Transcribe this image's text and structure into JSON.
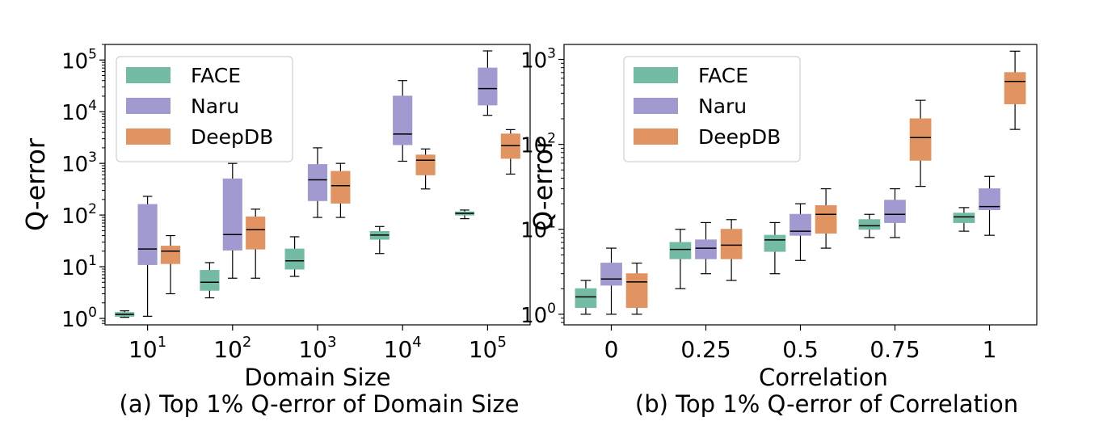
{
  "colors": {
    "FACE": "#74bba6",
    "Naru": "#a09ad0",
    "DeepDB": "#e19462"
  },
  "chart_data": [
    {
      "type": "box",
      "xlabel": "Domain Size",
      "ylabel": "Q-error",
      "caption": "(a) Top 1% Q-error of Domain Size",
      "yscale": "log",
      "ylim": [
        0.75,
        200000
      ],
      "y_ticks": [
        {
          "value": 1,
          "base": "10",
          "exp": "0"
        },
        {
          "value": 10,
          "base": "10",
          "exp": "1"
        },
        {
          "value": 100,
          "base": "10",
          "exp": "2"
        },
        {
          "value": 1000,
          "base": "10",
          "exp": "3"
        },
        {
          "value": 10000,
          "base": "10",
          "exp": "4"
        },
        {
          "value": 100000,
          "base": "10",
          "exp": "5"
        }
      ],
      "categories": [
        {
          "base": "10",
          "exp": "1"
        },
        {
          "base": "10",
          "exp": "2"
        },
        {
          "base": "10",
          "exp": "3"
        },
        {
          "base": "10",
          "exp": "4"
        },
        {
          "base": "10",
          "exp": "5"
        }
      ],
      "legend": {
        "position": "upper-left",
        "entries": [
          "FACE",
          "Naru",
          "DeepDB"
        ]
      },
      "series": [
        {
          "name": "FACE",
          "boxes": [
            {
              "whislo": 1.05,
              "q1": 1.1,
              "med": 1.2,
              "q3": 1.3,
              "whishi": 1.4
            },
            {
              "whislo": 2.5,
              "q1": 3.5,
              "med": 5,
              "q3": 8.5,
              "whishi": 12
            },
            {
              "whislo": 6.5,
              "q1": 9,
              "med": 13,
              "q3": 22,
              "whishi": 38
            },
            {
              "whislo": 18,
              "q1": 34,
              "med": 41,
              "q3": 48,
              "whishi": 60
            },
            {
              "whislo": 85,
              "q1": 100,
              "med": 108,
              "q3": 115,
              "whishi": 125
            }
          ]
        },
        {
          "name": "Naru",
          "boxes": [
            {
              "whislo": 1.1,
              "q1": 11,
              "med": 22,
              "q3": 160,
              "whishi": 230
            },
            {
              "whislo": 6,
              "q1": 21,
              "med": 42,
              "q3": 500,
              "whishi": 1000
            },
            {
              "whislo": 90,
              "q1": 190,
              "med": 480,
              "q3": 950,
              "whishi": 2000
            },
            {
              "whislo": 1100,
              "q1": 2300,
              "med": 3700,
              "q3": 20000,
              "whishi": 40000
            },
            {
              "whislo": 8500,
              "q1": 13500,
              "med": 28000,
              "q3": 70000,
              "whishi": 150000
            }
          ]
        },
        {
          "name": "DeepDB",
          "boxes": [
            {
              "whislo": 3,
              "q1": 11.5,
              "med": 20,
              "q3": 25,
              "whishi": 40
            },
            {
              "whislo": 6,
              "q1": 22,
              "med": 52,
              "q3": 92,
              "whishi": 130
            },
            {
              "whislo": 90,
              "q1": 170,
              "med": 370,
              "q3": 700,
              "whishi": 1000
            },
            {
              "whislo": 320,
              "q1": 600,
              "med": 1150,
              "q3": 1450,
              "whishi": 1900
            },
            {
              "whislo": 620,
              "q1": 1250,
              "med": 2200,
              "q3": 3700,
              "whishi": 4500
            }
          ]
        }
      ]
    },
    {
      "type": "box",
      "xlabel": "Correlation",
      "ylabel": "Q-error",
      "caption": "(b) Top 1% Q-error of Correlation",
      "yscale": "log",
      "ylim": [
        0.75,
        1500
      ],
      "y_ticks": [
        {
          "value": 1,
          "base": "10",
          "exp": "0"
        },
        {
          "value": 10,
          "base": "10",
          "exp": "1"
        },
        {
          "value": 100,
          "base": "10",
          "exp": "2"
        },
        {
          "value": 1000,
          "base": "10",
          "exp": "3"
        }
      ],
      "categories": [
        {
          "base": "0",
          "exp": ""
        },
        {
          "base": "0.25",
          "exp": ""
        },
        {
          "base": "0.5",
          "exp": ""
        },
        {
          "base": "0.75",
          "exp": ""
        },
        {
          "base": "1",
          "exp": ""
        }
      ],
      "legend": {
        "position": "upper-left",
        "entries": [
          "FACE",
          "Naru",
          "DeepDB"
        ]
      },
      "series": [
        {
          "name": "FACE",
          "boxes": [
            {
              "whislo": 1.0,
              "q1": 1.2,
              "med": 1.6,
              "q3": 2.0,
              "whishi": 2.5
            },
            {
              "whislo": 2.0,
              "q1": 4.5,
              "med": 5.8,
              "q3": 7.0,
              "whishi": 10
            },
            {
              "whislo": 3.0,
              "q1": 5.5,
              "med": 7.5,
              "q3": 8.5,
              "whishi": 12
            },
            {
              "whislo": 8.0,
              "q1": 10,
              "med": 11,
              "q3": 13,
              "whishi": 15
            },
            {
              "whislo": 9.5,
              "q1": 12,
              "med": 14,
              "q3": 15.5,
              "whishi": 18
            }
          ]
        },
        {
          "name": "Naru",
          "boxes": [
            {
              "whislo": 1.0,
              "q1": 2.2,
              "med": 2.6,
              "q3": 4.0,
              "whishi": 6.0
            },
            {
              "whislo": 3.0,
              "q1": 4.5,
              "med": 6.0,
              "q3": 7.5,
              "whishi": 12
            },
            {
              "whislo": 4.3,
              "q1": 8.5,
              "med": 9.5,
              "q3": 15,
              "whishi": 20
            },
            {
              "whislo": 8.0,
              "q1": 12,
              "med": 15,
              "q3": 22,
              "whishi": 30
            },
            {
              "whislo": 8.5,
              "q1": 17,
              "med": 18.5,
              "q3": 30,
              "whishi": 42
            }
          ]
        },
        {
          "name": "DeepDB",
          "boxes": [
            {
              "whislo": 1.0,
              "q1": 1.2,
              "med": 2.4,
              "q3": 3.0,
              "whishi": 4.0
            },
            {
              "whislo": 2.5,
              "q1": 4.5,
              "med": 6.5,
              "q3": 10,
              "whishi": 13
            },
            {
              "whislo": 6.0,
              "q1": 9,
              "med": 15,
              "q3": 19,
              "whishi": 30
            },
            {
              "whislo": 32,
              "q1": 65,
              "med": 120,
              "q3": 200,
              "whishi": 330
            },
            {
              "whislo": 150,
              "q1": 300,
              "med": 550,
              "q3": 700,
              "whishi": 1250
            }
          ]
        }
      ]
    }
  ]
}
